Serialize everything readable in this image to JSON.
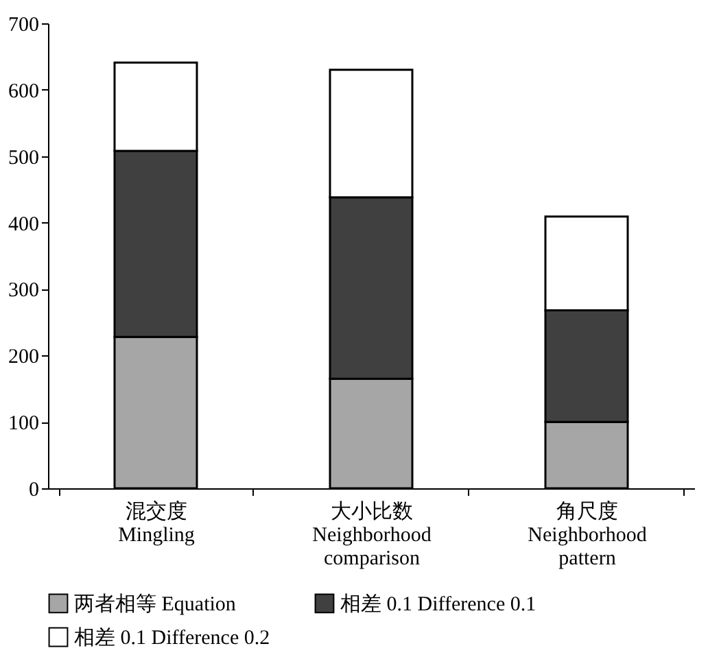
{
  "chart_data": {
    "type": "bar",
    "stacked": true,
    "categories": [
      "混交度\nMingling",
      "大小比数\nNeighborhood\ncomparison",
      "角尺度\nNeighborhood\npattern"
    ],
    "series": [
      {
        "name": "两者相等 Equation",
        "color": "#a6a6a6",
        "values": [
          228,
          165,
          100
        ]
      },
      {
        "name": "相差 0.1 Difference 0.1",
        "color": "#404040",
        "values": [
          280,
          273,
          168
        ]
      },
      {
        "name": "相差 0.1 Difference 0.2",
        "color": "#ffffff",
        "values": [
          133,
          192,
          141
        ]
      }
    ],
    "ylim": [
      0,
      700
    ],
    "yticks": [
      0,
      100,
      200,
      300,
      400,
      500,
      600,
      700
    ],
    "grid": false,
    "legend": "bottom"
  }
}
